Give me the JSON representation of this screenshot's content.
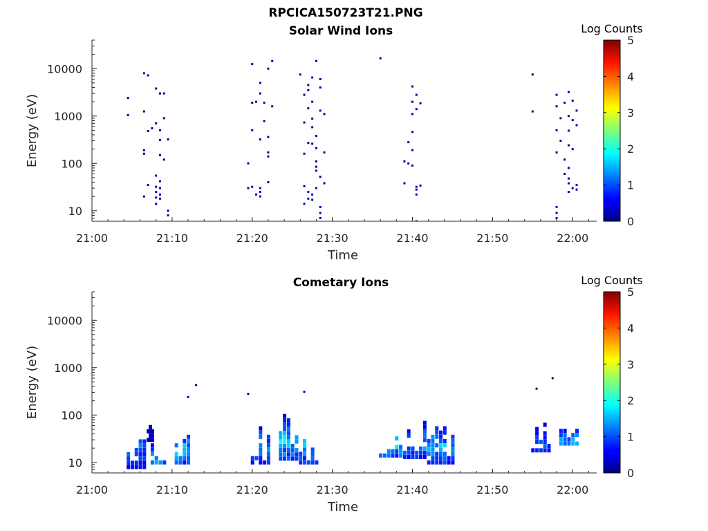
{
  "figure_title": "RPCICA150723T21.PNG",
  "colors": {
    "axis": "#262626",
    "background": "#ffffff"
  },
  "colorbar": {
    "label": "Log Counts",
    "range": [
      0,
      5
    ],
    "ticks": [
      "0",
      "1",
      "2",
      "3",
      "4",
      "5"
    ],
    "colormap": "jet"
  },
  "chart_data": [
    {
      "type": "heatmap",
      "title": "Solar Wind Ions",
      "xlabel": "Time",
      "ylabel": "Energy (eV)",
      "x_ticks": [
        "21:00",
        "21:10",
        "21:20",
        "21:30",
        "21:40",
        "21:50",
        "22:00"
      ],
      "y_ticks": [
        "10",
        "100",
        "1000",
        "10000"
      ],
      "y_scale": "log",
      "xlim": [
        "21:00",
        "22:03"
      ],
      "ylim": [
        6,
        40000
      ],
      "colorbar_label": "Log Counts",
      "points": [
        [
          "21:04.5",
          2400,
          0.1
        ],
        [
          "21:04.5",
          1050,
          0.1
        ],
        [
          "21:06.5",
          8000,
          0.1
        ],
        [
          "21:07",
          7200,
          0.1
        ],
        [
          "21:06.5",
          1250,
          0.1
        ],
        [
          "21:06.5",
          190,
          0.1
        ],
        [
          "21:06.5",
          160,
          0.1
        ],
        [
          "21:07",
          480,
          0.1
        ],
        [
          "21:07.5",
          550,
          0.1
        ],
        [
          "21:08",
          700,
          0.1
        ],
        [
          "21:08",
          3800,
          0.1
        ],
        [
          "21:08.5",
          3000,
          0.1
        ],
        [
          "21:09",
          3000,
          0.1
        ],
        [
          "21:09",
          900,
          0.1
        ],
        [
          "21:08.5",
          500,
          0.1
        ],
        [
          "21:09.5",
          320,
          0.1
        ],
        [
          "21:08.5",
          310,
          0.1
        ],
        [
          "21:08.5",
          150,
          0.1
        ],
        [
          "21:09",
          120,
          0.1
        ],
        [
          "21:08",
          55,
          0.2
        ],
        [
          "21:08.5",
          42,
          0.2
        ],
        [
          "21:07",
          35,
          0.2
        ],
        [
          "21:08",
          32,
          0.3
        ],
        [
          "21:08.5",
          30,
          0.3
        ],
        [
          "21:08",
          25,
          0.3
        ],
        [
          "21:08.5",
          22,
          0.3
        ],
        [
          "21:06.5",
          20,
          0.2
        ],
        [
          "21:08",
          19,
          0.3
        ],
        [
          "21:08.5",
          18,
          0.3
        ],
        [
          "21:08",
          14,
          0.2
        ],
        [
          "21:09.5",
          10,
          0.2
        ],
        [
          "21:09.5",
          8,
          0.2
        ],
        [
          "21:19.5",
          100,
          0.1
        ],
        [
          "21:20",
          12500,
          0.1
        ],
        [
          "21:22",
          10000,
          0.1
        ],
        [
          "21:22.5",
          14500,
          0.1
        ],
        [
          "21:21",
          5000,
          0.1
        ],
        [
          "21:21",
          3000,
          0.1
        ],
        [
          "21:20.5",
          2000,
          0.1
        ],
        [
          "21:20",
          1900,
          0.1
        ],
        [
          "21:21.5",
          1900,
          0.1
        ],
        [
          "21:22.5",
          1600,
          0.1
        ],
        [
          "21:20",
          500,
          0.1
        ],
        [
          "21:21.5",
          780,
          0.1
        ],
        [
          "21:22",
          360,
          0.1
        ],
        [
          "21:21",
          320,
          0.1
        ],
        [
          "21:22",
          170,
          0.1
        ],
        [
          "21:22",
          140,
          0.1
        ],
        [
          "21:19.5",
          30,
          0.2
        ],
        [
          "21:20",
          32,
          0.2
        ],
        [
          "21:21",
          30,
          0.2
        ],
        [
          "21:22",
          40,
          0.2
        ],
        [
          "21:21",
          25,
          0.3
        ],
        [
          "21:21",
          20,
          0.3
        ],
        [
          "21:20.5",
          22,
          0.3
        ],
        [
          "21:26",
          7500,
          0.1
        ],
        [
          "21:27.5",
          6500,
          0.1
        ],
        [
          "21:28.5",
          6000,
          0.1
        ],
        [
          "21:28",
          14500,
          0.1
        ],
        [
          "21:27",
          4500,
          0.1
        ],
        [
          "21:27",
          3500,
          0.1
        ],
        [
          "21:28.5",
          4000,
          0.1
        ],
        [
          "21:26.5",
          2800,
          0.1
        ],
        [
          "21:27.5",
          2000,
          0.1
        ],
        [
          "21:27",
          1450,
          0.1
        ],
        [
          "21:28.5",
          1300,
          0.1
        ],
        [
          "21:29",
          1100,
          0.1
        ],
        [
          "21:27.5",
          880,
          0.1
        ],
        [
          "21:26.5",
          730,
          0.1
        ],
        [
          "21:27.5",
          580,
          0.1
        ],
        [
          "21:28",
          380,
          0.1
        ],
        [
          "21:27",
          270,
          0.1
        ],
        [
          "21:27.5",
          260,
          0.1
        ],
        [
          "21:28",
          210,
          0.1
        ],
        [
          "21:29",
          170,
          0.1
        ],
        [
          "21:26.5",
          160,
          0.1
        ],
        [
          "21:28",
          110,
          0.1
        ],
        [
          "21:28",
          85,
          0.2
        ],
        [
          "21:28",
          70,
          0.2
        ],
        [
          "21:28.5",
          52,
          0.2
        ],
        [
          "21:29",
          38,
          0.2
        ],
        [
          "21:26.5",
          33,
          0.2
        ],
        [
          "21:28",
          30,
          0.3
        ],
        [
          "21:27",
          25,
          0.3
        ],
        [
          "21:27.5",
          22,
          0.3
        ],
        [
          "21:27",
          18,
          0.3
        ],
        [
          "21:27.5",
          17,
          0.3
        ],
        [
          "21:26.5",
          14,
          0.3
        ],
        [
          "21:28.5",
          12,
          0.2
        ],
        [
          "21:28.5",
          9,
          0.2
        ],
        [
          "21:28.5",
          7,
          0.2
        ],
        [
          "21:36",
          16500,
          0.1
        ],
        [
          "21:40",
          4200,
          0.1
        ],
        [
          "21:40.5",
          2800,
          0.1
        ],
        [
          "21:40",
          2000,
          0.1
        ],
        [
          "21:41",
          1850,
          0.1
        ],
        [
          "21:40.5",
          1400,
          0.1
        ],
        [
          "21:40",
          1100,
          0.1
        ],
        [
          "21:40",
          460,
          0.1
        ],
        [
          "21:39.5",
          280,
          0.1
        ],
        [
          "21:40",
          190,
          0.1
        ],
        [
          "21:39",
          110,
          0.1
        ],
        [
          "21:39.5",
          100,
          0.1
        ],
        [
          "21:40",
          90,
          0.1
        ],
        [
          "21:39",
          38,
          0.2
        ],
        [
          "21:40.5",
          32,
          0.2
        ],
        [
          "21:40.5",
          28,
          0.3
        ],
        [
          "21:40.5",
          22,
          0.3
        ],
        [
          "21:41",
          34,
          0.2
        ],
        [
          "21:40.5",
          6,
          0.2
        ],
        [
          "21:55",
          7500,
          0.1
        ],
        [
          "21:55",
          1250,
          0.1
        ],
        [
          "21:58",
          2800,
          0.1
        ],
        [
          "21:59.5",
          3200,
          0.1
        ],
        [
          "22:00",
          2100,
          0.1
        ],
        [
          "21:59",
          1900,
          0.1
        ],
        [
          "21:58",
          1600,
          0.1
        ],
        [
          "22:00.5",
          1300,
          0.1
        ],
        [
          "21:59.5",
          1000,
          0.1
        ],
        [
          "21:58.5",
          900,
          0.1
        ],
        [
          "22:00",
          820,
          0.1
        ],
        [
          "22:00.5",
          640,
          0.1
        ],
        [
          "21:58",
          500,
          0.1
        ],
        [
          "21:59.5",
          490,
          0.1
        ],
        [
          "21:58.5",
          300,
          0.1
        ],
        [
          "21:59.5",
          240,
          0.1
        ],
        [
          "22:00",
          200,
          0.1
        ],
        [
          "21:58",
          170,
          0.1
        ],
        [
          "21:59",
          120,
          0.1
        ],
        [
          "21:59.5",
          80,
          0.2
        ],
        [
          "21:59",
          60,
          0.2
        ],
        [
          "21:59.5",
          48,
          0.2
        ],
        [
          "21:59.5",
          38,
          0.3
        ],
        [
          "22:00.5",
          35,
          0.3
        ],
        [
          "22:00",
          30,
          0.3
        ],
        [
          "22:00.5",
          28,
          0.3
        ],
        [
          "21:59.5",
          25,
          0.2
        ],
        [
          "21:58",
          12,
          0.2
        ],
        [
          "21:58",
          9,
          0.2
        ],
        [
          "21:58",
          7,
          0.2
        ]
      ]
    },
    {
      "type": "heatmap",
      "title": "Cometary Ions",
      "xlabel": "Time",
      "ylabel": "Energy (eV)",
      "x_ticks": [
        "21:00",
        "21:10",
        "21:20",
        "21:30",
        "21:40",
        "21:50",
        "22:00"
      ],
      "y_ticks": [
        "10",
        "100",
        "1000",
        "10000"
      ],
      "y_scale": "log",
      "xlim": [
        "21:00",
        "22:03"
      ],
      "ylim": [
        6,
        40000
      ],
      "colorbar_label": "Log Counts",
      "clusters": [
        [
          "21:04.5",
          "21:06.5",
          8,
          160,
          1.3
        ],
        [
          "21:07",
          "21:07.5",
          30,
          150,
          0.4
        ],
        [
          "21:07.5",
          "21:09",
          10,
          45,
          1.8
        ],
        [
          "21:10.5",
          "21:12",
          10,
          100,
          1.9
        ],
        [
          "21:20",
          "21:22",
          10,
          150,
          1.6
        ],
        [
          "21:23.5",
          "21:25.5",
          12,
          220,
          1.9
        ],
        [
          "21:26",
          "21:28",
          10,
          300,
          2.0
        ],
        [
          "21:36",
          "21:38.5",
          14,
          150,
          1.8
        ],
        [
          "21:39",
          "21:41.5",
          13,
          170,
          1.6
        ],
        [
          "21:42",
          "21:45",
          10,
          150,
          1.7
        ],
        [
          "21:55",
          "21:57",
          18,
          130,
          1.2
        ],
        [
          "21:58.5",
          "22:00.5",
          25,
          130,
          1.6
        ]
      ],
      "points": [
        [
          "21:13",
          430,
          0.1
        ],
        [
          "21:12",
          240,
          0.1
        ],
        [
          "21:19.5",
          280,
          0.1
        ],
        [
          "21:26.5",
          310,
          0.1
        ],
        [
          "21:57.5",
          600,
          0.1
        ],
        [
          "21:55.5",
          360,
          0.1
        ]
      ]
    }
  ]
}
